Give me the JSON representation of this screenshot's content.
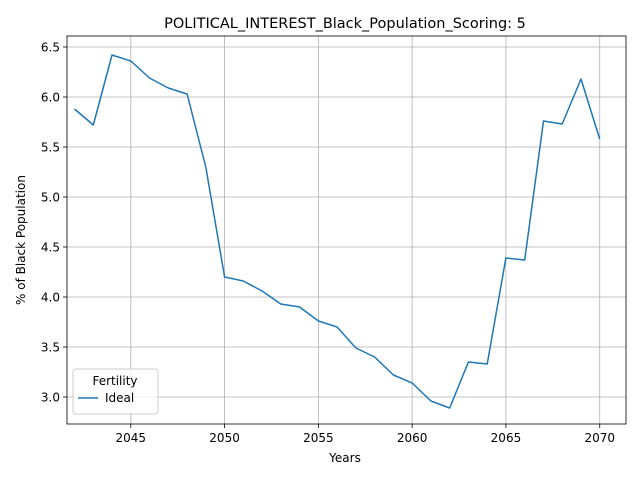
{
  "chart_data": {
    "type": "line",
    "title": "POLITICAL_INTEREST_Black_Population_Scoring: 5",
    "xlabel": "Years",
    "ylabel": "% of Black Population",
    "xlim": [
      2041.6,
      2071.4
    ],
    "ylim": [
      2.73,
      6.61
    ],
    "xticks": [
      2045,
      2050,
      2055,
      2060,
      2065,
      2070
    ],
    "yticks": [
      3.0,
      3.5,
      4.0,
      4.5,
      5.0,
      5.5,
      6.0,
      6.5
    ],
    "grid": true,
    "legend": {
      "title": "Fertility",
      "placement": "lower-left"
    },
    "series": [
      {
        "name": "Ideal",
        "color": "#1f77b4",
        "x": [
          2042,
          2043,
          2044,
          2045,
          2046,
          2047,
          2048,
          2049,
          2050,
          2051,
          2052,
          2053,
          2054,
          2055,
          2056,
          2057,
          2058,
          2059,
          2060,
          2061,
          2062,
          2063,
          2064,
          2065,
          2066,
          2067,
          2068,
          2069,
          2070
        ],
        "y": [
          5.88,
          5.72,
          6.42,
          6.36,
          6.19,
          6.09,
          6.03,
          5.3,
          4.2,
          4.16,
          4.06,
          3.93,
          3.9,
          3.76,
          3.7,
          3.49,
          3.4,
          3.22,
          3.14,
          2.96,
          2.89,
          3.35,
          3.33,
          4.39,
          4.37,
          5.76,
          5.73,
          6.18,
          5.58
        ]
      }
    ]
  }
}
